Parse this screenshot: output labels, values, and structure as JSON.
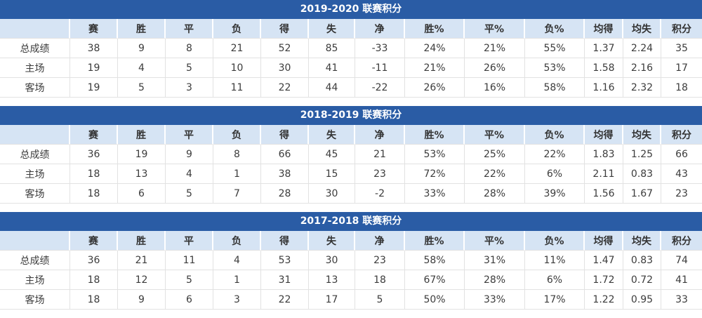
{
  "colors": {
    "title_bar_bg": "#2A5CA5",
    "title_text": "#FFFFFF",
    "header_row_bg": "#D6E4F4",
    "row_label_bg": "#E5EDF8",
    "cell_bg": "#FFFFFF",
    "win_pct_bg": "#F8DDD3",
    "draw_pct_bg": "#FAEDD8",
    "loss_pct_bg": "#E9F5DE",
    "avg_gf_bg": "#E8F3DC",
    "avg_ga_bg": "#E1EFF7",
    "points_bg": "#FDFACE",
    "text": "#3C3C3C",
    "grid_line": "#E2E2E2"
  },
  "columns": [
    {
      "key": "row-label",
      "label": ""
    },
    {
      "key": "games",
      "label": "赛"
    },
    {
      "key": "wins",
      "label": "胜"
    },
    {
      "key": "draws",
      "label": "平"
    },
    {
      "key": "losses",
      "label": "负"
    },
    {
      "key": "goals-for",
      "label": "得"
    },
    {
      "key": "goals-against",
      "label": "失"
    },
    {
      "key": "goal-diff",
      "label": "净"
    },
    {
      "key": "win-pct",
      "label": "胜%"
    },
    {
      "key": "draw-pct",
      "label": "平%"
    },
    {
      "key": "loss-pct",
      "label": "负%"
    },
    {
      "key": "avg-goals-for",
      "label": "均得"
    },
    {
      "key": "avg-goals-against",
      "label": "均失"
    },
    {
      "key": "points",
      "label": "积分"
    }
  ],
  "tables": [
    {
      "title": "2019-2020 联赛积分",
      "rows": [
        {
          "label": "总成绩",
          "values": [
            "38",
            "9",
            "8",
            "21",
            "52",
            "85",
            "-33",
            "24%",
            "21%",
            "55%",
            "1.37",
            "2.24",
            "35"
          ]
        },
        {
          "label": "主场",
          "values": [
            "19",
            "4",
            "5",
            "10",
            "30",
            "41",
            "-11",
            "21%",
            "26%",
            "53%",
            "1.58",
            "2.16",
            "17"
          ]
        },
        {
          "label": "客场",
          "values": [
            "19",
            "5",
            "3",
            "11",
            "22",
            "44",
            "-22",
            "26%",
            "16%",
            "58%",
            "1.16",
            "2.32",
            "18"
          ]
        }
      ]
    },
    {
      "title": "2018-2019 联赛积分",
      "rows": [
        {
          "label": "总成绩",
          "values": [
            "36",
            "19",
            "9",
            "8",
            "66",
            "45",
            "21",
            "53%",
            "25%",
            "22%",
            "1.83",
            "1.25",
            "66"
          ]
        },
        {
          "label": "主场",
          "values": [
            "18",
            "13",
            "4",
            "1",
            "38",
            "15",
            "23",
            "72%",
            "22%",
            "6%",
            "2.11",
            "0.83",
            "43"
          ]
        },
        {
          "label": "客场",
          "values": [
            "18",
            "6",
            "5",
            "7",
            "28",
            "30",
            "-2",
            "33%",
            "28%",
            "39%",
            "1.56",
            "1.67",
            "23"
          ]
        }
      ]
    },
    {
      "title": "2017-2018 联赛积分",
      "rows": [
        {
          "label": "总成绩",
          "values": [
            "36",
            "21",
            "11",
            "4",
            "53",
            "30",
            "23",
            "58%",
            "31%",
            "11%",
            "1.47",
            "0.83",
            "74"
          ]
        },
        {
          "label": "主场",
          "values": [
            "18",
            "12",
            "5",
            "1",
            "31",
            "13",
            "18",
            "67%",
            "28%",
            "6%",
            "1.72",
            "0.72",
            "41"
          ]
        },
        {
          "label": "客场",
          "values": [
            "18",
            "9",
            "6",
            "3",
            "22",
            "17",
            "5",
            "50%",
            "33%",
            "17%",
            "1.22",
            "0.95",
            "33"
          ]
        }
      ]
    }
  ]
}
